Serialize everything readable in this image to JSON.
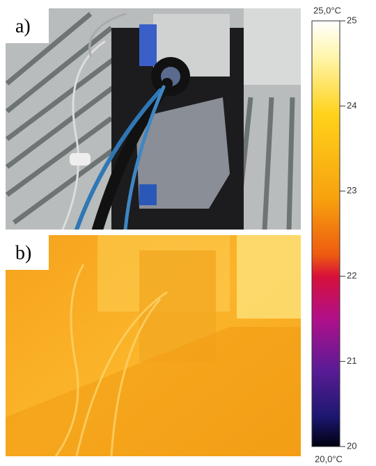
{
  "panels": [
    {
      "label": "a)"
    },
    {
      "label": "b)"
    }
  ],
  "colorbar": {
    "max_label": "25,0°C",
    "min_label": "20,0°C",
    "lim": [
      20,
      25
    ],
    "ticks": [
      20,
      21,
      22,
      23,
      24,
      25
    ]
  }
}
